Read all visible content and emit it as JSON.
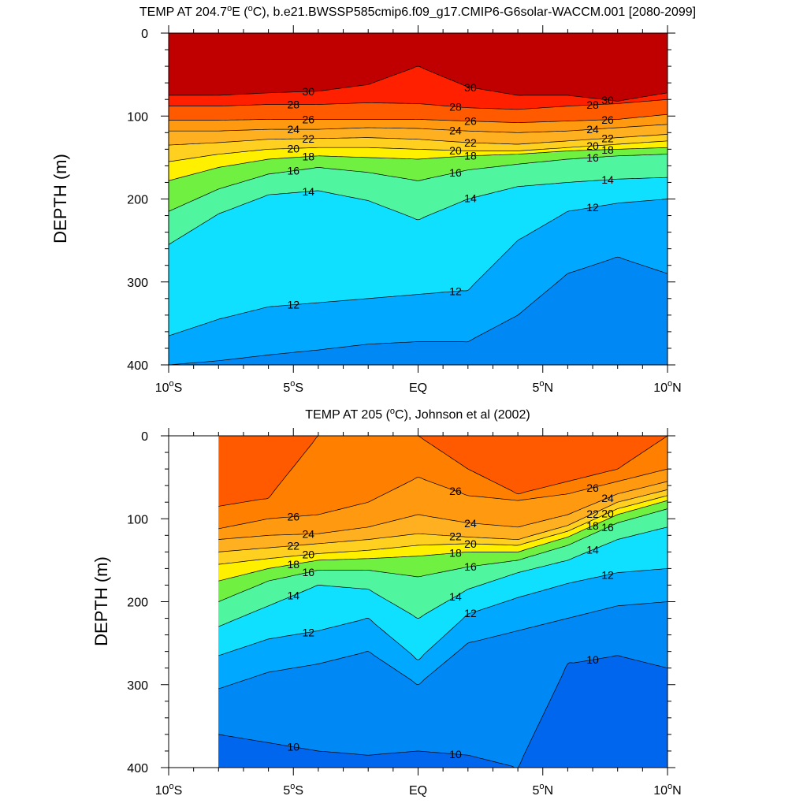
{
  "chart_data": [
    {
      "type": "heatmap",
      "subtype": "filled-contour",
      "title": "TEMP AT 204.7°E (°C), b.e21.BWSSP585cmip6.f09_g17.CMIP6-G6solar-WACCM.001 [2080-2099]",
      "title_parts": {
        "before": "TEMP AT 204.7",
        "sup1": "o",
        "mid": "E (",
        "sup2": "o",
        "after": "C), b.e21.BWSSP585cmip6.f09_g17.CMIP6-G6solar-WACCM.001 [2080-2099]"
      },
      "xlabel": "",
      "ylabel": "DEPTH (m)",
      "xlim": [
        -10,
        10
      ],
      "ylim": [
        400,
        0
      ],
      "x_ticks": [
        {
          "value": -10,
          "label": "10°S",
          "num": "10",
          "hemi": "S"
        },
        {
          "value": -5,
          "label": "5°S",
          "num": "5",
          "hemi": "S"
        },
        {
          "value": 0,
          "label": "EQ",
          "num": "EQ",
          "hemi": ""
        },
        {
          "value": 5,
          "label": "5°N",
          "num": "5",
          "hemi": "N"
        },
        {
          "value": 10,
          "label": "10°N",
          "num": "10",
          "hemi": "N"
        }
      ],
      "y_ticks": [
        0,
        100,
        200,
        300,
        400
      ],
      "data_x_range": [
        -10,
        10
      ],
      "contour_interval": 1,
      "lat": [
        -10,
        -8,
        -6,
        -4,
        -2,
        0,
        2,
        4,
        6,
        8,
        10
      ],
      "depth_of_isotherm": {
        "30": [
          75,
          75,
          72,
          70,
          62,
          40,
          65,
          75,
          75,
          82,
          72
        ],
        "28": [
          88,
          88,
          86,
          86,
          84,
          85,
          90,
          92,
          88,
          85,
          80
        ],
        "26": [
          105,
          105,
          104,
          104,
          104,
          104,
          106,
          108,
          106,
          104,
          98
        ],
        "24": [
          118,
          118,
          116,
          116,
          114,
          115,
          118,
          120,
          118,
          114,
          110
        ],
        "22": [
          135,
          132,
          128,
          127,
          126,
          128,
          132,
          134,
          130,
          126,
          122
        ],
        "20": [
          155,
          146,
          140,
          138,
          138,
          140,
          142,
          142,
          138,
          134,
          130
        ],
        "18": [
          178,
          162,
          152,
          148,
          150,
          152,
          148,
          146,
          142,
          140,
          138
        ],
        "16": [
          215,
          188,
          170,
          162,
          168,
          178,
          165,
          158,
          152,
          148,
          146
        ],
        "14": [
          255,
          218,
          195,
          190,
          202,
          225,
          200,
          185,
          180,
          176,
          174
        ],
        "12": [
          365,
          345,
          330,
          325,
          320,
          315,
          310,
          250,
          215,
          205,
          200
        ],
        "11": [
          400,
          395,
          388,
          382,
          375,
          372,
          372,
          340,
          290,
          270,
          290
        ]
      },
      "labeled_isotherms": [
        12,
        14,
        16,
        18,
        20,
        22,
        24,
        26,
        28,
        30
      ]
    },
    {
      "type": "heatmap",
      "subtype": "filled-contour",
      "title": "TEMP AT 205 (°C), Johnson et al (2002)",
      "title_parts": {
        "before": "TEMP AT 205 (",
        "sup1": "o",
        "after": "C), Johnson et al (2002)"
      },
      "xlabel": "",
      "ylabel": "DEPTH (m)",
      "xlim": [
        -10,
        10
      ],
      "ylim": [
        400,
        0
      ],
      "x_ticks": [
        {
          "value": -10,
          "label": "10°S",
          "num": "10",
          "hemi": "S"
        },
        {
          "value": -5,
          "label": "5°S",
          "num": "5",
          "hemi": "S"
        },
        {
          "value": 0,
          "label": "EQ",
          "num": "EQ",
          "hemi": ""
        },
        {
          "value": 5,
          "label": "5°N",
          "num": "5",
          "hemi": "N"
        },
        {
          "value": 10,
          "label": "10°N",
          "num": "10",
          "hemi": "N"
        }
      ],
      "y_ticks": [
        0,
        100,
        200,
        300,
        400
      ],
      "data_x_range": [
        -8,
        10
      ],
      "contour_interval": 1,
      "lat": [
        -8,
        -6,
        -4,
        -2,
        0,
        2,
        4,
        6,
        8,
        10
      ],
      "depth_of_isotherm": {
        "27": [
          85,
          75,
          0,
          0,
          0,
          40,
          70,
          55,
          40,
          0
        ],
        "26": [
          112,
          100,
          95,
          80,
          50,
          72,
          78,
          70,
          55,
          40
        ],
        "24": [
          125,
          120,
          118,
          110,
          95,
          105,
          110,
          95,
          70,
          55
        ],
        "22": [
          140,
          135,
          130,
          125,
          118,
          122,
          125,
          108,
          80,
          65
        ],
        "20": [
          155,
          148,
          142,
          138,
          132,
          130,
          132,
          115,
          88,
          72
        ],
        "18": [
          175,
          160,
          150,
          148,
          145,
          140,
          140,
          122,
          95,
          78
        ],
        "16": [
          200,
          175,
          162,
          162,
          170,
          158,
          150,
          132,
          105,
          88
        ],
        "14": [
          230,
          205,
          180,
          185,
          220,
          185,
          165,
          150,
          125,
          110
        ],
        "12": [
          265,
          245,
          235,
          220,
          270,
          215,
          195,
          178,
          165,
          160
        ],
        "11": [
          305,
          285,
          275,
          260,
          300,
          250,
          235,
          220,
          205,
          200
        ],
        "10": [
          360,
          370,
          380,
          385,
          380,
          385,
          400,
          275,
          265,
          280
        ]
      },
      "labeled_isotherms": [
        10,
        12,
        14,
        16,
        18,
        20,
        22,
        24,
        26
      ]
    }
  ],
  "colors": {
    "temperature_scale": [
      {
        "t": 8,
        "color": "#0038ff"
      },
      {
        "t": 9.5,
        "color": "#0066ee"
      },
      {
        "t": 10.5,
        "color": "#0088f5"
      },
      {
        "t": 11.5,
        "color": "#00a8ff"
      },
      {
        "t": 12.5,
        "color": "#00c8ff"
      },
      {
        "t": 13.5,
        "color": "#10e0ff"
      },
      {
        "t": 14.5,
        "color": "#30f0e0"
      },
      {
        "t": 15.5,
        "color": "#50f5a0"
      },
      {
        "t": 16.5,
        "color": "#20e020"
      },
      {
        "t": 17.5,
        "color": "#70f040"
      },
      {
        "t": 18.5,
        "color": "#c0f020"
      },
      {
        "t": 19.5,
        "color": "#fff000"
      },
      {
        "t": 21,
        "color": "#ffd020"
      },
      {
        "t": 23,
        "color": "#ffb020"
      },
      {
        "t": 25,
        "color": "#ff9a10"
      },
      {
        "t": 26.5,
        "color": "#ff8000"
      },
      {
        "t": 27.5,
        "color": "#ff5a00"
      },
      {
        "t": 29,
        "color": "#ff2000"
      },
      {
        "t": 30,
        "color": "#ee0000"
      },
      {
        "t": 31,
        "color": "#c00000"
      }
    ],
    "contour_line": "#000000",
    "axis": "#000000",
    "background": "#ffffff"
  }
}
